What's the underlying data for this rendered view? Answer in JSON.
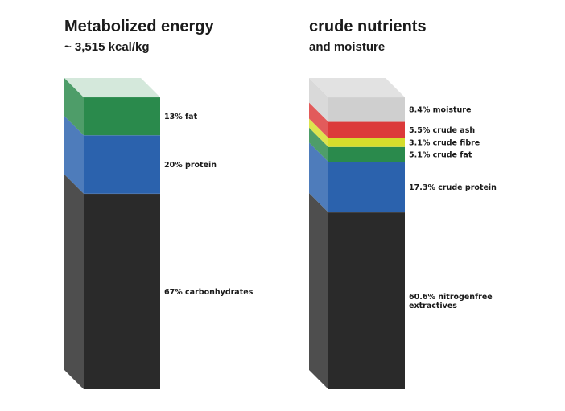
{
  "chart_data": [
    {
      "type": "bar",
      "stacked": true,
      "title": "Metabolized energy",
      "subtitle": "~ 3,515 kcal/kg",
      "unit": "%",
      "series": [
        {
          "name": "carbonhydrates",
          "value": 67,
          "label": "67% carbonhydrates",
          "color": "#2a2a2a"
        },
        {
          "name": "protein",
          "value": 20,
          "label": "20% protein",
          "color": "#2b62ad"
        },
        {
          "name": "fat",
          "value": 13,
          "label": "13% fat",
          "color": "#2a8a4c"
        }
      ]
    },
    {
      "type": "bar",
      "stacked": true,
      "title": "crude nutrients",
      "subtitle": "and moisture",
      "unit": "%",
      "series": [
        {
          "name": "nitrogenfree extractives",
          "value": 60.6,
          "label": "60.6% nitrogenfree extractives",
          "color": "#2a2a2a"
        },
        {
          "name": "crude protein",
          "value": 17.3,
          "label": "17.3% crude protein",
          "color": "#2b62ad"
        },
        {
          "name": "crude fat",
          "value": 5.1,
          "label": "5.1% crude fat",
          "color": "#2a8a4c"
        },
        {
          "name": "crude fibre",
          "value": 3.1,
          "label": "3.1% crude fibre",
          "color": "#d6dd2c"
        },
        {
          "name": "crude ash",
          "value": 5.5,
          "label": "5.5% crude ash",
          "color": "#dc3a3a"
        },
        {
          "name": "moisture",
          "value": 8.4,
          "label": "8.4% moisture",
          "color": "#cfcfcf"
        }
      ]
    }
  ]
}
